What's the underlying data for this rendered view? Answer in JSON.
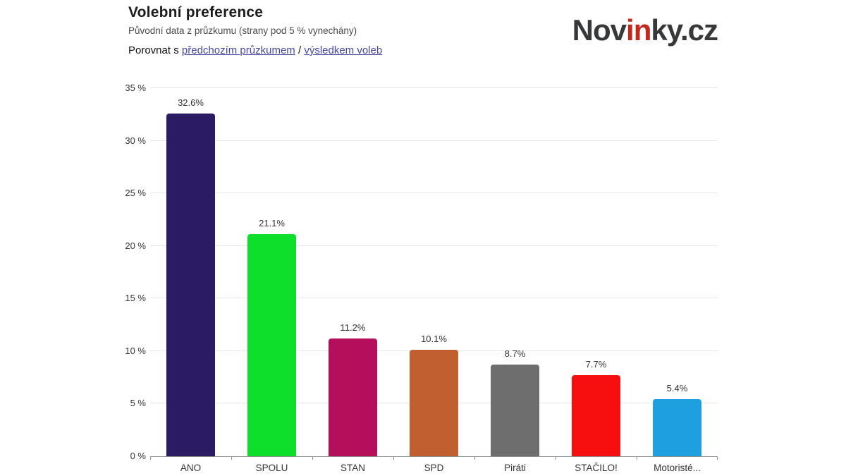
{
  "header": {
    "title": "Volební preference",
    "subtitle": "Původní data z průzkumu (strany pod 5 % vynechány)",
    "compare": {
      "prefix": "Porovnat s",
      "link1": "předchozím průzkumem",
      "separator": "/",
      "link2": "výsledkem voleb",
      "link_color": "#4747a3"
    },
    "logo": {
      "part1": "Nov",
      "part2": "in",
      "part3": "ky.cz",
      "dark_color": "#37383a",
      "red_color": "#c4271c"
    }
  },
  "chart_data": {
    "type": "bar",
    "title": "Volební preference",
    "subtitle": "Původní data z průzkumu (strany pod 5 % vynechány)",
    "categories": [
      "ANO",
      "SPOLU",
      "STAN",
      "SPD",
      "Piráti",
      "STAČILO!",
      "Motoristé..."
    ],
    "values": [
      32.6,
      21.1,
      11.2,
      10.1,
      8.7,
      7.7,
      5.4
    ],
    "value_labels": [
      "32.6%",
      "21.1%",
      "11.2%",
      "10.1%",
      "8.7%",
      "7.7%",
      "5.4%"
    ],
    "bar_colors": [
      "#2b1a64",
      "#0ddf2b",
      "#b50f5b",
      "#c1602e",
      "#6e6e6e",
      "#f70f0f",
      "#1ea0e0"
    ],
    "xlabel": "",
    "ylabel": "",
    "ylim": [
      0,
      35
    ],
    "ytick_step": 5,
    "ytick_suffix": " %",
    "grid": true,
    "legend": "none",
    "colors_meta": {
      "gridline": "#e6e6e6",
      "axis": "#8f8f8f",
      "tick_label": "#333333"
    }
  }
}
